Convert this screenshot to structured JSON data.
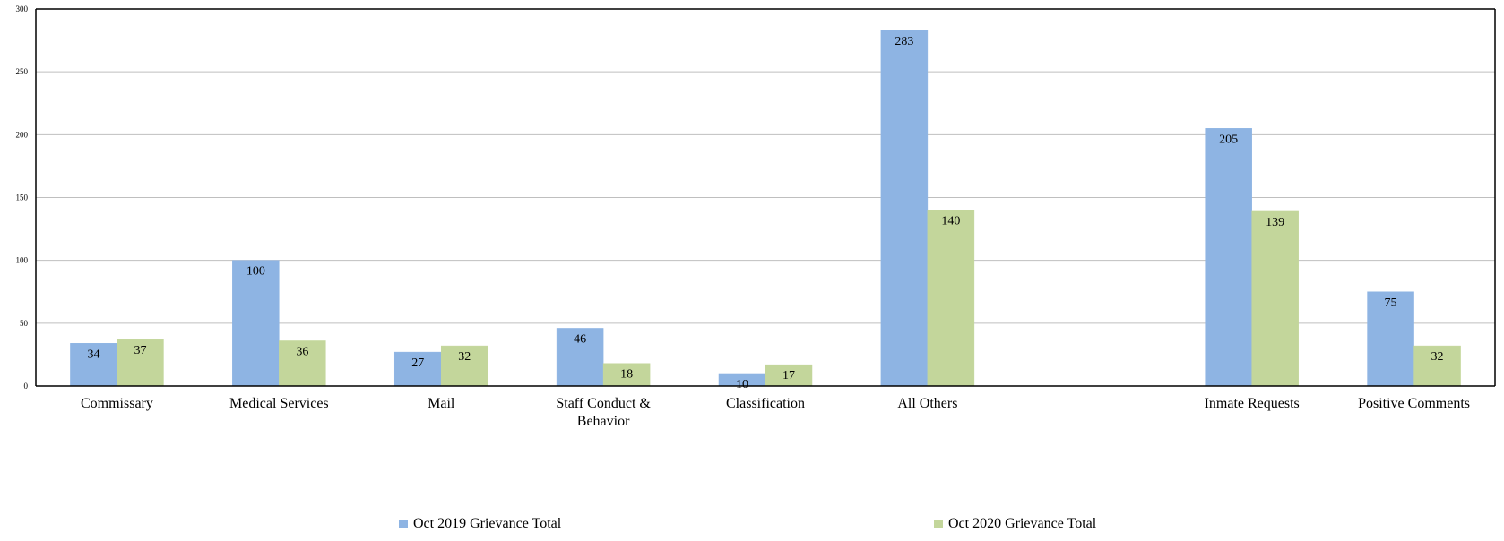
{
  "chart_data": {
    "type": "bar",
    "title": "",
    "xlabel": "",
    "ylabel": "",
    "ylim": [
      0,
      300
    ],
    "yticks": [
      0,
      50,
      100,
      150,
      200,
      250,
      300
    ],
    "grid": true,
    "legend_position": "bottom",
    "categories": [
      "Commissary",
      "Medical Services",
      "Mail",
      "Staff Conduct & Behavior",
      "Classification",
      "All Others",
      "",
      "Inmate Requests",
      "Positive Comments"
    ],
    "series": [
      {
        "name": "Oct 2019 Grievance Total",
        "color": "#8eb4e3",
        "values": [
          34,
          100,
          27,
          46,
          10,
          283,
          null,
          205,
          75
        ]
      },
      {
        "name": "Oct 2020 Grievance Total",
        "color": "#c3d69b",
        "values": [
          37,
          36,
          32,
          18,
          17,
          140,
          null,
          139,
          32
        ]
      }
    ]
  }
}
